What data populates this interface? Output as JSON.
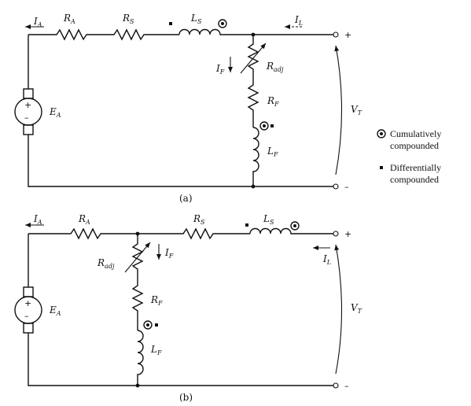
{
  "circuit_a": {
    "caption": "(a)",
    "labels": {
      "i_a": [
        "I",
        "A"
      ],
      "r_a": [
        "R",
        "A"
      ],
      "r_s": [
        "R",
        "S"
      ],
      "l_s": [
        "L",
        "S"
      ],
      "i_l": [
        "I",
        "L"
      ],
      "i_f": [
        "I",
        "F"
      ],
      "r_adj": [
        "R",
        "adj"
      ],
      "r_f": [
        "R",
        "F"
      ],
      "l_f": [
        "L",
        "F"
      ],
      "e_a": [
        "E",
        "A"
      ],
      "v_t": [
        "V",
        "T"
      ]
    },
    "terminal_plus": "+",
    "terminal_minus": "–"
  },
  "circuit_b": {
    "caption": "(b)",
    "labels": {
      "i_a": [
        "I",
        "A"
      ],
      "r_a": [
        "R",
        "A"
      ],
      "r_s": [
        "R",
        "S"
      ],
      "l_s": [
        "L",
        "S"
      ],
      "i_l": [
        "I",
        "L"
      ],
      "i_f": [
        "I",
        "F"
      ],
      "r_adj": [
        "R",
        "adj"
      ],
      "r_f": [
        "R",
        "F"
      ],
      "l_f": [
        "L",
        "F"
      ],
      "e_a": [
        "E",
        "A"
      ],
      "v_t": [
        "V",
        "T"
      ]
    },
    "terminal_plus": "+",
    "terminal_minus": "–"
  },
  "legend": {
    "cumulative_line1": "Cumulatively",
    "cumulative_line2": "compounded",
    "differential_line1": "Differentially",
    "differential_line2": "compounded"
  }
}
